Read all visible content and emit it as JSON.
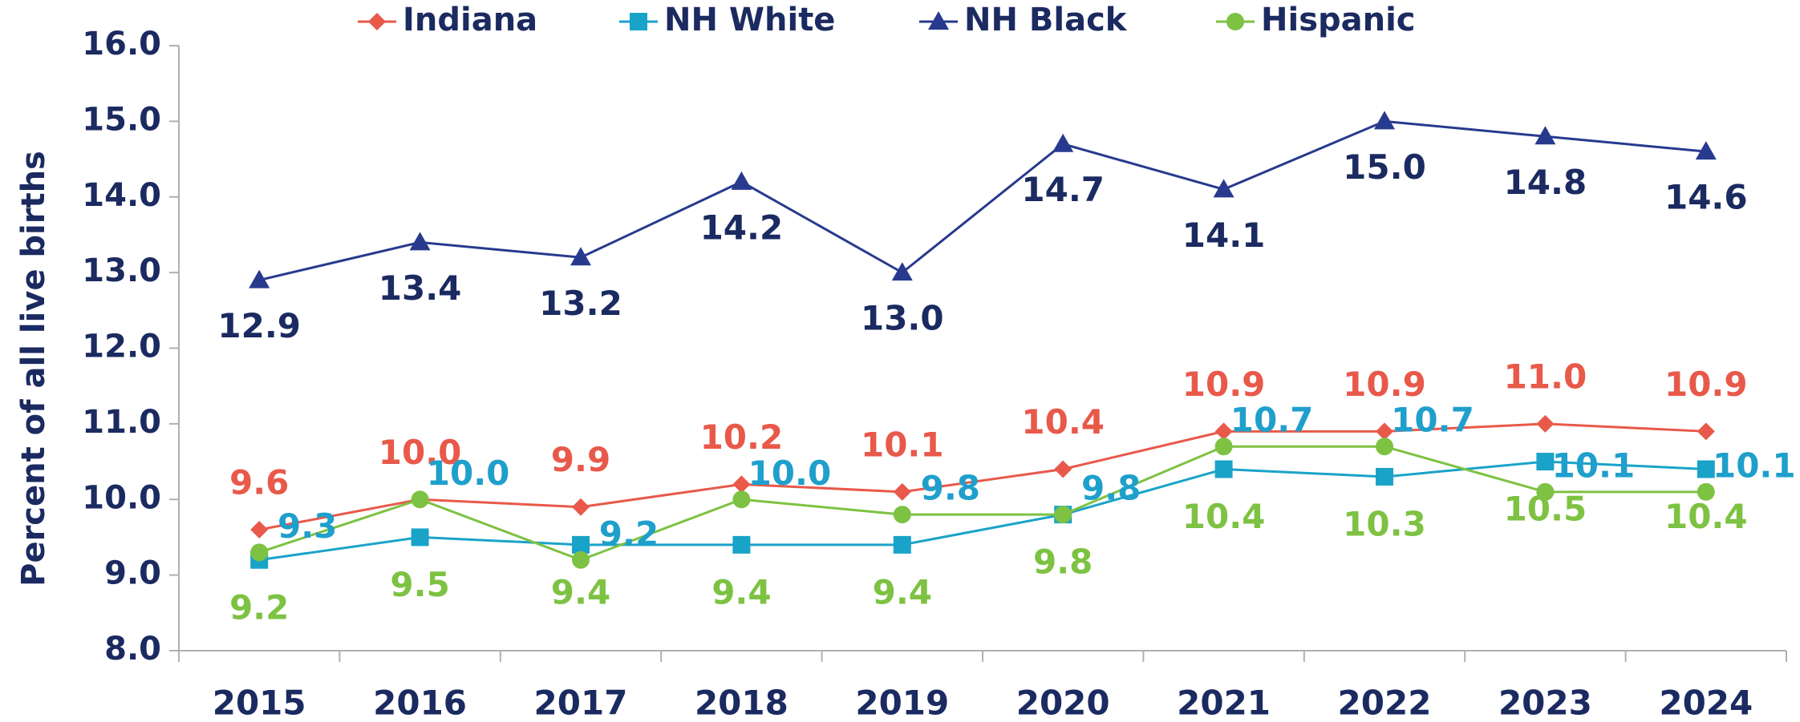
{
  "chart_data": {
    "type": "line",
    "y_label": "Percent of all live births",
    "categories": [
      "2015",
      "2016",
      "2017",
      "2018",
      "2019",
      "2020",
      "2021",
      "2022",
      "2023",
      "2024"
    ],
    "series": [
      {
        "name": "Indiana",
        "color": "#e8594a",
        "label_color": "#e8594a",
        "marker": "diamond",
        "values": [
          9.6,
          10.0,
          9.9,
          10.2,
          10.1,
          10.4,
          10.9,
          10.9,
          11.0,
          10.9
        ],
        "value_labels": [
          "9.6",
          "10.0",
          "9.9",
          "10.2",
          "10.1",
          "10.4",
          "10.9",
          "10.9",
          "11.0",
          "10.9"
        ]
      },
      {
        "name": "NH White",
        "color": "#1aa3c8",
        "label_color": "#7dc242",
        "marker": "square",
        "values": [
          9.2,
          9.5,
          9.4,
          9.4,
          9.4,
          9.8,
          10.4,
          10.3,
          10.5,
          10.4
        ],
        "value_labels": [
          "9.2",
          "9.5",
          "9.4",
          "9.4",
          "9.4",
          "9.8",
          "10.4",
          "10.3",
          "10.5",
          "10.4"
        ]
      },
      {
        "name": "NH Black",
        "color": "#273a8e",
        "label_color": "#1b2a60",
        "marker": "triangle",
        "values": [
          12.9,
          13.4,
          13.2,
          14.2,
          13.0,
          14.7,
          14.1,
          15.0,
          14.8,
          14.6
        ],
        "value_labels": [
          "12.9",
          "13.4",
          "13.2",
          "14.2",
          "13.0",
          "14.7",
          "14.1",
          "15.0",
          "14.8",
          "14.6"
        ]
      },
      {
        "name": "Hispanic",
        "color": "#7dc242",
        "label_color": "#1f9fcc",
        "marker": "circle",
        "values": [
          9.3,
          10.0,
          9.2,
          10.0,
          9.8,
          9.8,
          10.7,
          10.7,
          10.1,
          10.1
        ],
        "value_labels": [
          "9.3",
          "10.0",
          "9.2",
          "10.0",
          "9.8",
          "9.8",
          "10.7",
          "10.7",
          "10.1",
          "10.1"
        ]
      }
    ],
    "ylim": [
      8.0,
      16.0
    ],
    "yticks": [
      {
        "value": 8,
        "label": "8.0"
      },
      {
        "value": 9,
        "label": "9.0"
      },
      {
        "value": 10,
        "label": "10.0"
      },
      {
        "value": 11,
        "label": "11.0"
      },
      {
        "value": 12,
        "label": "12.0"
      },
      {
        "value": 13,
        "label": "13.0"
      },
      {
        "value": 14,
        "label": "14.0"
      },
      {
        "value": 15,
        "label": "15.0"
      },
      {
        "value": 16,
        "label": "16.0"
      }
    ],
    "grid": false,
    "legend": "top"
  }
}
